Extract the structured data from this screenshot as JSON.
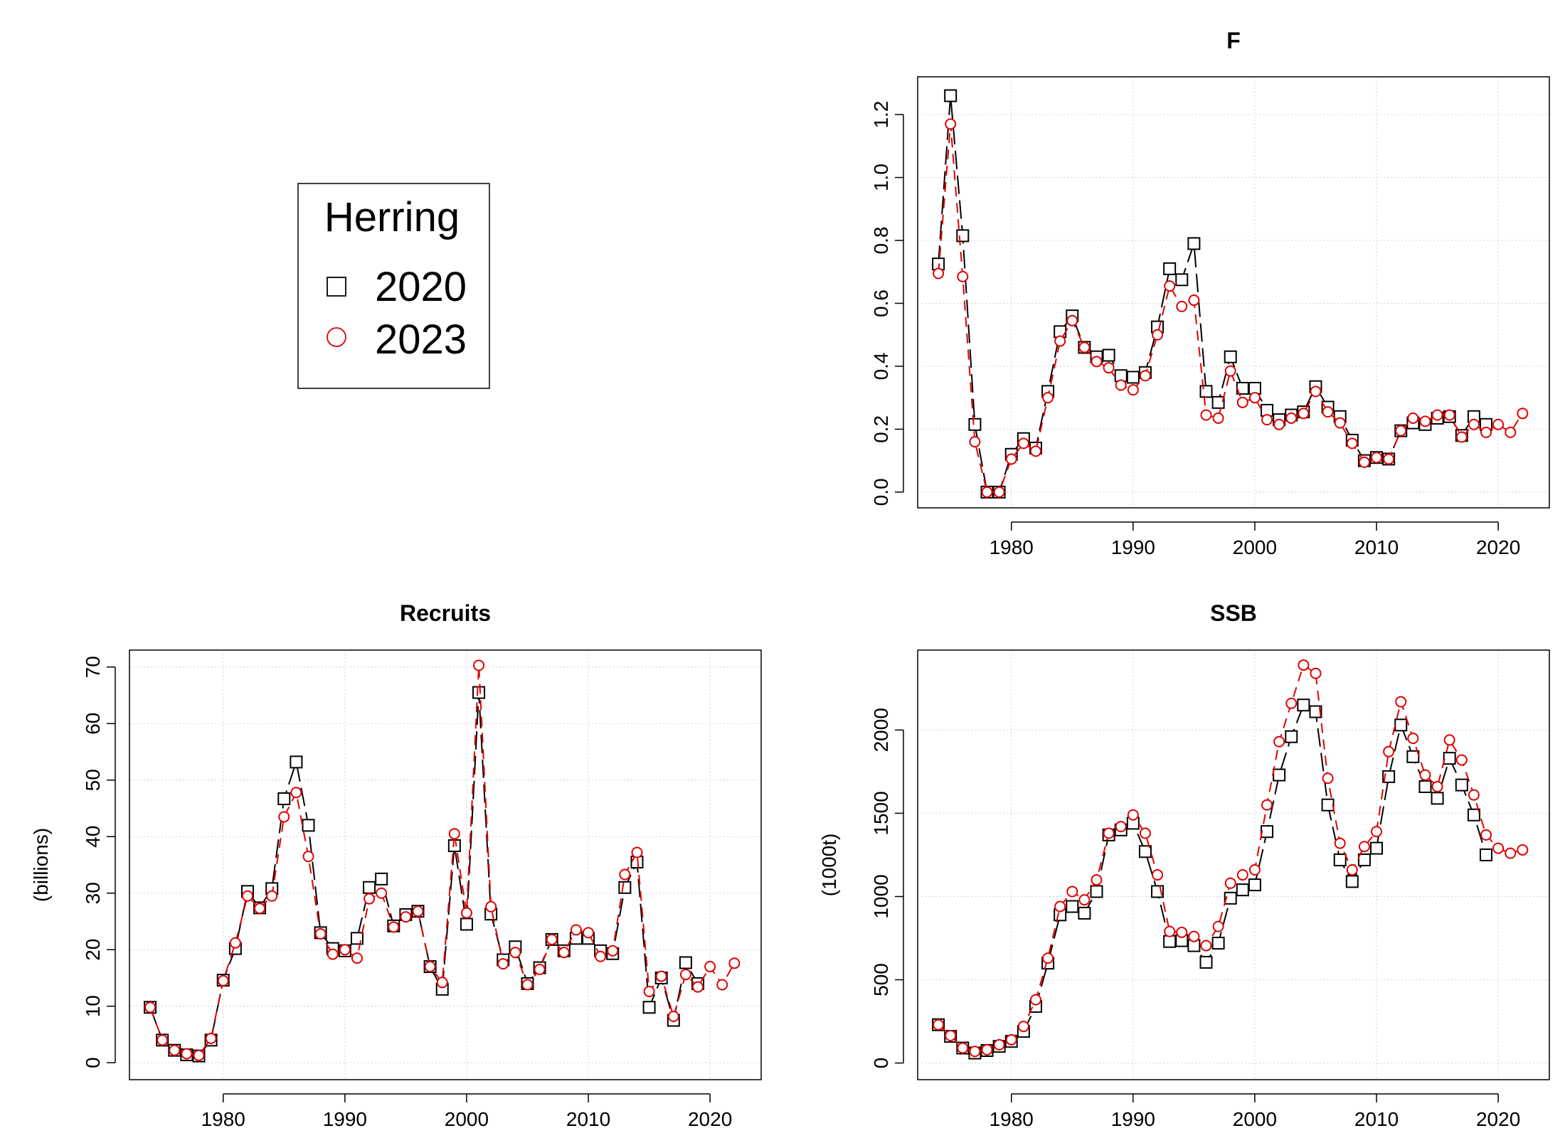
{
  "legend": {
    "title": "Herring",
    "entries": [
      {
        "label": "2020",
        "color": "#000000",
        "symbol": "square"
      },
      {
        "label": "2023",
        "color": "#e00000",
        "symbol": "circle"
      }
    ]
  },
  "chart_data": [
    {
      "type": "line",
      "title": "F",
      "xlabel": "",
      "ylabel": "",
      "xlim": [
        1972.3,
        2024.2
      ],
      "ylim": [
        -0.05,
        1.32
      ],
      "xticks": [
        1980,
        1990,
        2000,
        2010,
        2020
      ],
      "yticks": [
        0.0,
        0.2,
        0.4,
        0.6,
        0.8,
        1.0,
        1.2
      ],
      "ytick_labels": [
        "0.0",
        "0.2",
        "0.4",
        "0.6",
        "0.8",
        "1.0",
        "1.2"
      ],
      "grid": true,
      "series": [
        {
          "name": "2020",
          "color": "#000000",
          "marker": "square",
          "dash": "long",
          "x": [
            1974,
            1975,
            1976,
            1977,
            1978,
            1979,
            1980,
            1981,
            1982,
            1983,
            1984,
            1985,
            1986,
            1987,
            1988,
            1989,
            1990,
            1991,
            1992,
            1993,
            1994,
            1995,
            1996,
            1997,
            1998,
            1999,
            2000,
            2001,
            2002,
            2003,
            2004,
            2005,
            2006,
            2007,
            2008,
            2009,
            2010,
            2011,
            2012,
            2013,
            2014,
            2015,
            2016,
            2017,
            2018,
            2019
          ],
          "y": [
            0.725,
            1.26,
            0.815,
            0.215,
            0.0,
            0.0,
            0.12,
            0.17,
            0.14,
            0.32,
            0.51,
            0.56,
            0.46,
            0.43,
            0.435,
            0.37,
            0.365,
            0.38,
            0.525,
            0.71,
            0.675,
            0.79,
            0.32,
            0.285,
            0.43,
            0.33,
            0.33,
            0.26,
            0.23,
            0.245,
            0.255,
            0.335,
            0.27,
            0.24,
            0.165,
            0.1,
            0.11,
            0.105,
            0.195,
            0.22,
            0.215,
            0.235,
            0.24,
            0.18,
            0.24,
            0.215
          ]
        },
        {
          "name": "2023",
          "color": "#e00000",
          "marker": "circle",
          "dash": "medium",
          "x": [
            1974,
            1975,
            1976,
            1977,
            1978,
            1979,
            1980,
            1981,
            1982,
            1983,
            1984,
            1985,
            1986,
            1987,
            1988,
            1989,
            1990,
            1991,
            1992,
            1993,
            1994,
            1995,
            1996,
            1997,
            1998,
            1999,
            2000,
            2001,
            2002,
            2003,
            2004,
            2005,
            2006,
            2007,
            2008,
            2009,
            2010,
            2011,
            2012,
            2013,
            2014,
            2015,
            2016,
            2017,
            2018,
            2019,
            2020,
            2021,
            2022
          ],
          "y": [
            0.695,
            1.17,
            0.685,
            0.16,
            0.0,
            0.0,
            0.105,
            0.155,
            0.13,
            0.3,
            0.48,
            0.545,
            0.46,
            0.415,
            0.395,
            0.34,
            0.325,
            0.37,
            0.5,
            0.655,
            0.59,
            0.61,
            0.245,
            0.235,
            0.385,
            0.285,
            0.3,
            0.23,
            0.215,
            0.235,
            0.25,
            0.32,
            0.255,
            0.22,
            0.155,
            0.095,
            0.11,
            0.105,
            0.195,
            0.235,
            0.225,
            0.245,
            0.245,
            0.175,
            0.215,
            0.19,
            0.215,
            0.19,
            0.25
          ]
        }
      ]
    },
    {
      "type": "line",
      "title": "Recruits",
      "xlabel": "",
      "ylabel": "(billions)",
      "xlim": [
        1972.3,
        2024.2
      ],
      "ylim": [
        -3,
        73
      ],
      "xticks": [
        1980,
        1990,
        2000,
        2010,
        2020
      ],
      "yticks": [
        0,
        10,
        20,
        30,
        40,
        50,
        60,
        70
      ],
      "ytick_labels": [
        "0",
        "10",
        "20",
        "30",
        "40",
        "50",
        "60",
        "70"
      ],
      "grid": true,
      "series": [
        {
          "name": "2020",
          "color": "#000000",
          "marker": "square",
          "dash": "long",
          "x": [
            1974,
            1975,
            1976,
            1977,
            1978,
            1979,
            1980,
            1981,
            1982,
            1983,
            1984,
            1985,
            1986,
            1987,
            1988,
            1989,
            1990,
            1991,
            1992,
            1993,
            1994,
            1995,
            1996,
            1997,
            1998,
            1999,
            2000,
            2001,
            2002,
            2003,
            2004,
            2005,
            2006,
            2007,
            2008,
            2009,
            2010,
            2011,
            2012,
            2013,
            2014,
            2015,
            2016,
            2017,
            2018,
            2019
          ],
          "y": [
            9.8,
            4.0,
            2.2,
            1.4,
            1.2,
            4.0,
            14.6,
            20.2,
            30.3,
            27.4,
            30.8,
            46.7,
            53.2,
            42.0,
            23.0,
            20.2,
            19.8,
            22.0,
            31.0,
            32.5,
            24.2,
            26.2,
            26.8,
            17.0,
            13.0,
            38.4,
            24.5,
            65.5,
            26.3,
            18.2,
            20.5,
            14.0,
            16.8,
            21.8,
            19.8,
            22.0,
            22.0,
            19.8,
            19.3,
            31.0,
            35.5,
            9.8,
            15.0,
            7.5,
            17.7,
            14.0
          ]
        },
        {
          "name": "2023",
          "color": "#e00000",
          "marker": "circle",
          "dash": "medium",
          "x": [
            1974,
            1975,
            1976,
            1977,
            1978,
            1979,
            1980,
            1981,
            1982,
            1983,
            1984,
            1985,
            1986,
            1987,
            1988,
            1989,
            1990,
            1991,
            1992,
            1993,
            1994,
            1995,
            1996,
            1997,
            1998,
            1999,
            2000,
            2001,
            2002,
            2003,
            2004,
            2005,
            2006,
            2007,
            2008,
            2009,
            2010,
            2011,
            2012,
            2013,
            2014,
            2015,
            2016,
            2017,
            2018,
            2019,
            2020,
            2021,
            2022
          ],
          "y": [
            9.8,
            4.0,
            2.2,
            1.6,
            1.3,
            4.3,
            14.5,
            21.2,
            29.5,
            27.3,
            29.5,
            43.5,
            47.8,
            36.5,
            22.8,
            19.2,
            20.0,
            18.5,
            29.0,
            30.0,
            24.0,
            25.8,
            26.8,
            17.0,
            14.2,
            40.5,
            26.5,
            70.3,
            27.6,
            17.5,
            19.5,
            13.8,
            16.5,
            21.8,
            19.5,
            23.5,
            23.0,
            18.8,
            19.8,
            33.3,
            37.2,
            12.6,
            15.3,
            8.2,
            15.6,
            13.4,
            17.0,
            13.8,
            17.6
          ]
        }
      ]
    },
    {
      "type": "line",
      "title": "SSB",
      "xlabel": "",
      "ylabel": "(1000t)",
      "xlim": [
        1972.3,
        2024.2
      ],
      "ylim": [
        -100,
        2480
      ],
      "xticks": [
        1980,
        1990,
        2000,
        2010,
        2020
      ],
      "yticks": [
        0,
        500,
        1000,
        1500,
        2000
      ],
      "ytick_labels": [
        "0",
        "500",
        "1000",
        "1500",
        "2000"
      ],
      "grid": true,
      "series": [
        {
          "name": "2020",
          "color": "#000000",
          "marker": "square",
          "dash": "long",
          "x": [
            1974,
            1975,
            1976,
            1977,
            1978,
            1979,
            1980,
            1981,
            1982,
            1983,
            1984,
            1985,
            1986,
            1987,
            1988,
            1989,
            1990,
            1991,
            1992,
            1993,
            1994,
            1995,
            1996,
            1997,
            1998,
            1999,
            2000,
            2001,
            2002,
            2003,
            2004,
            2005,
            2006,
            2007,
            2008,
            2009,
            2010,
            2011,
            2012,
            2013,
            2014,
            2015,
            2016,
            2017,
            2018,
            2019
          ],
          "y": [
            230,
            160,
            90,
            60,
            75,
            100,
            130,
            190,
            340,
            600,
            890,
            940,
            900,
            1030,
            1370,
            1400,
            1440,
            1270,
            1030,
            730,
            735,
            705,
            605,
            720,
            990,
            1040,
            1070,
            1390,
            1730,
            1960,
            2150,
            2110,
            1550,
            1220,
            1090,
            1220,
            1290,
            1720,
            2030,
            1840,
            1660,
            1590,
            1830,
            1670,
            1490,
            1250
          ]
        },
        {
          "name": "2023",
          "color": "#e00000",
          "marker": "circle",
          "dash": "medium",
          "x": [
            1974,
            1975,
            1976,
            1977,
            1978,
            1979,
            1980,
            1981,
            1982,
            1983,
            1984,
            1985,
            1986,
            1987,
            1988,
            1989,
            1990,
            1991,
            1992,
            1993,
            1994,
            1995,
            1996,
            1997,
            1998,
            1999,
            2000,
            2001,
            2002,
            2003,
            2004,
            2005,
            2006,
            2007,
            2008,
            2009,
            2010,
            2011,
            2012,
            2013,
            2014,
            2015,
            2016,
            2017,
            2018,
            2019,
            2020,
            2021,
            2022
          ],
          "y": [
            230,
            165,
            90,
            70,
            80,
            110,
            140,
            220,
            380,
            630,
            940,
            1030,
            980,
            1100,
            1380,
            1420,
            1490,
            1380,
            1130,
            790,
            785,
            760,
            705,
            820,
            1080,
            1130,
            1160,
            1550,
            1930,
            2160,
            2390,
            2340,
            1710,
            1320,
            1160,
            1300,
            1390,
            1870,
            2170,
            1950,
            1730,
            1660,
            1940,
            1820,
            1610,
            1370,
            1290,
            1260,
            1280
          ]
        }
      ]
    }
  ]
}
